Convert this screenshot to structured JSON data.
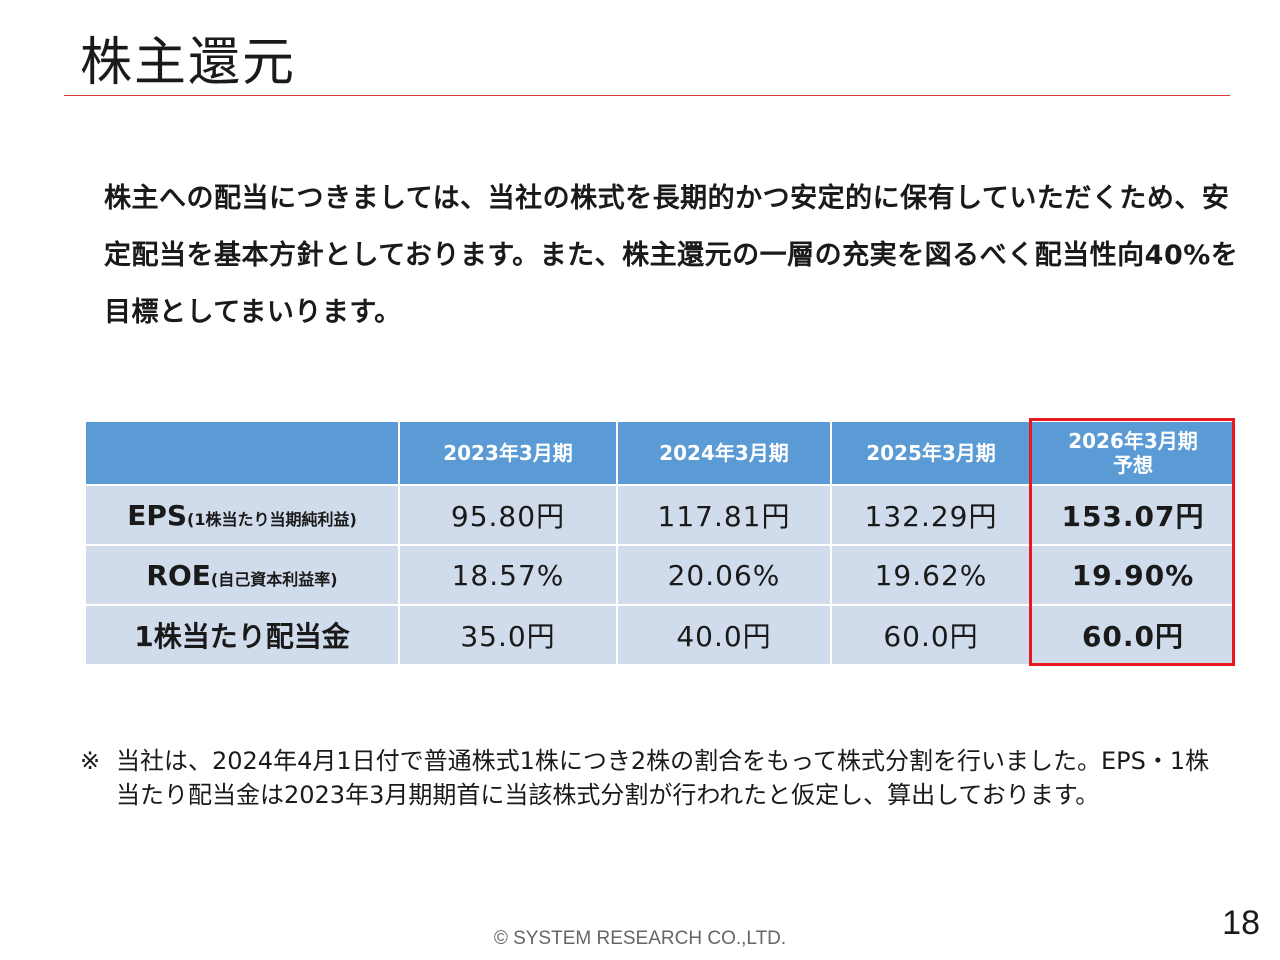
{
  "title": "株主還元",
  "intro": "株主への配当につきましては、当社の株式を長期的かつ安定的に保有していただくため、安定配当を基本方針としております。また、株主還元の一層の充実を図るべく配当性向40%を目標としてまいります。",
  "table": {
    "headers": [
      {
        "line1": "2023年3月期",
        "line2": ""
      },
      {
        "line1": "2024年3月期",
        "line2": ""
      },
      {
        "line1": "2025年3月期",
        "line2": ""
      },
      {
        "line1": "2026年3月期",
        "line2": "予想"
      }
    ],
    "rows": [
      {
        "label": "EPS",
        "sub": "(1株当たり当期純利益)",
        "values": [
          "95.80円",
          "117.81円",
          "132.29円",
          "153.07円"
        ]
      },
      {
        "label": "ROE",
        "sub": "(自己資本利益率)",
        "values": [
          "18.57%",
          "20.06%",
          "19.62%",
          "19.90%"
        ]
      },
      {
        "label": "1株当たり配当金",
        "sub": "",
        "values": [
          "35.0円",
          "40.0円",
          "60.0円",
          "60.0円"
        ]
      }
    ]
  },
  "note": {
    "mark": "※",
    "text": "当社は、2024年4月1日付で普通株式1株につき2株の割合をもって株式分割を行いました。EPS・1株当たり配当金は2023年3月期期首に当該株式分割が行われたと仮定し、算出しております。"
  },
  "footer": "© SYSTEM RESEARCH CO.,LTD.",
  "page_number": "18",
  "colors": {
    "header_bg": "#5b9bd5",
    "cell_bg": "#d0dceb",
    "title_rule": "#d9403b",
    "highlight_border": "#e8191e"
  }
}
